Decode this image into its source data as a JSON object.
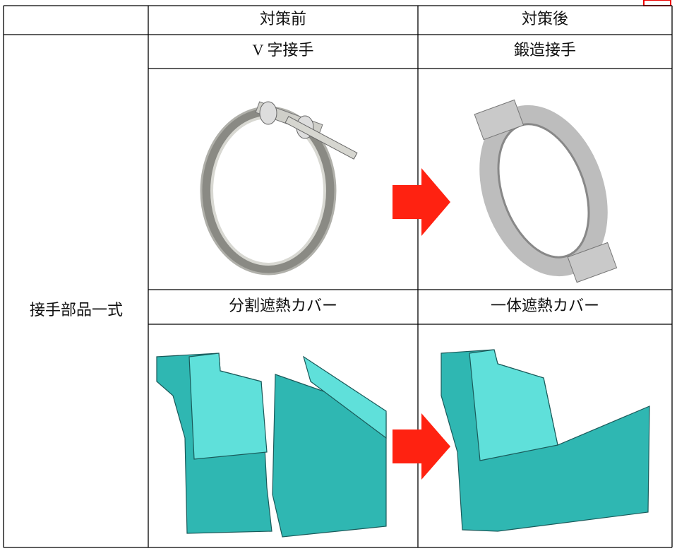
{
  "table": {
    "header": [
      "対策前",
      "対策後"
    ],
    "row_label": "接手部品一式",
    "rows": [
      [
        "V 字接手",
        "鍛造接手"
      ],
      [
        "分割遮熱カバー",
        "一体遮熱カバー"
      ]
    ]
  }
}
